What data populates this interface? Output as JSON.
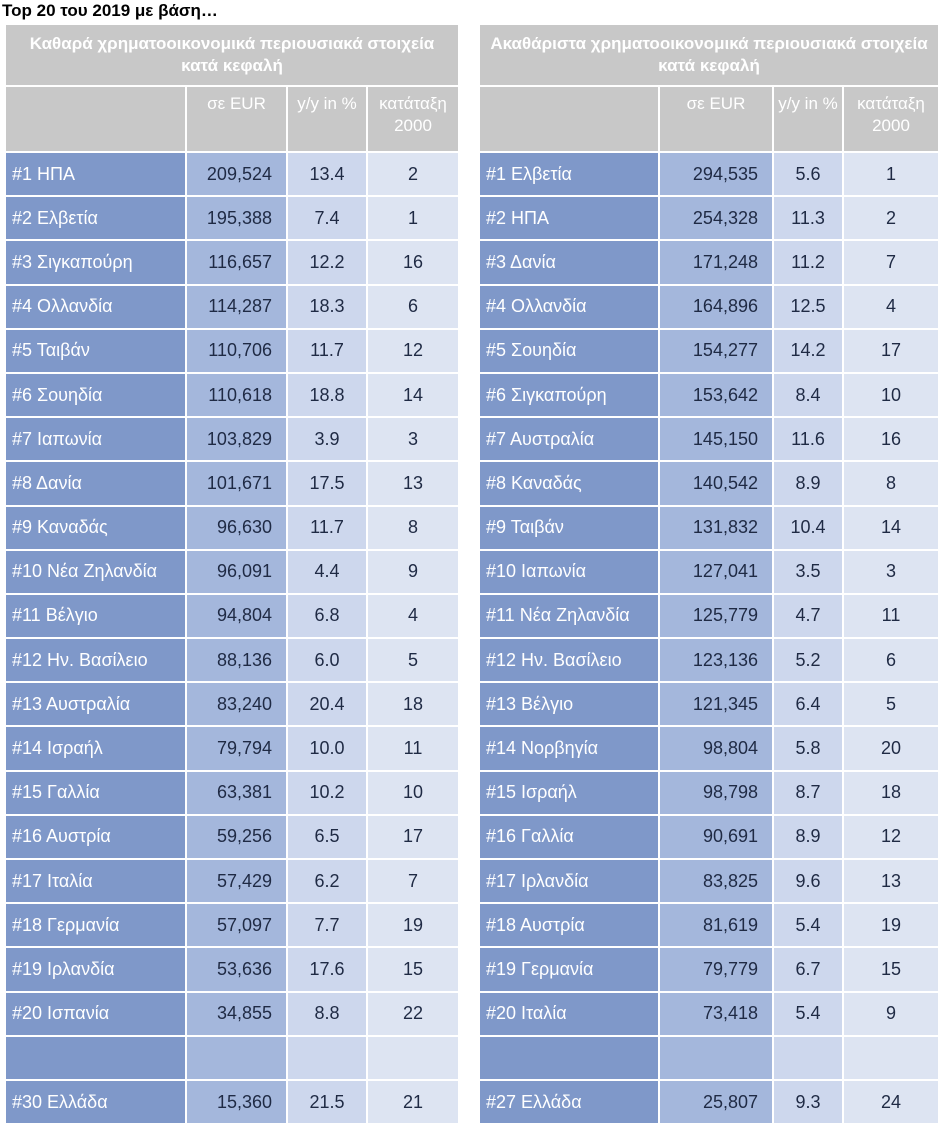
{
  "page_title": "Top 20 του 2019 με βάση…",
  "left": {
    "title": "Καθαρά χρηματοοικονομικά περιουσιακά στοιχεία κατά κεφαλή",
    "headers": [
      "",
      "σε EUR",
      "y/y in %",
      "κατάταξη 2000"
    ],
    "rows": [
      {
        "country": "#1 ΗΠΑ",
        "eur": "209,524",
        "yy": "13.4",
        "rank": "2"
      },
      {
        "country": "#2 Ελβετία",
        "eur": "195,388",
        "yy": "7.4",
        "rank": "1"
      },
      {
        "country": "#3 Σιγκαπούρη",
        "eur": "116,657",
        "yy": "12.2",
        "rank": "16"
      },
      {
        "country": "#4 Ολλανδία",
        "eur": "114,287",
        "yy": "18.3",
        "rank": "6"
      },
      {
        "country": "#5 Ταιβάν",
        "eur": "110,706",
        "yy": "11.7",
        "rank": "12"
      },
      {
        "country": "#6 Σουηδία",
        "eur": "110,618",
        "yy": "18.8",
        "rank": "14"
      },
      {
        "country": "#7 Ιαπωνία",
        "eur": "103,829",
        "yy": "3.9",
        "rank": "3"
      },
      {
        "country": "#8 Δανία",
        "eur": "101,671",
        "yy": "17.5",
        "rank": "13"
      },
      {
        "country": "#9 Καναδάς",
        "eur": "96,630",
        "yy": "11.7",
        "rank": "8"
      },
      {
        "country": "#10 Νέα Ζηλανδία",
        "eur": "96,091",
        "yy": "4.4",
        "rank": "9"
      },
      {
        "country": "#11 Βέλγιο",
        "eur": "94,804",
        "yy": "6.8",
        "rank": "4"
      },
      {
        "country": "#12 Ην. Βασίλειο",
        "eur": "88,136",
        "yy": "6.0",
        "rank": "5"
      },
      {
        "country": "#13 Αυστραλία",
        "eur": "83,240",
        "yy": "20.4",
        "rank": "18"
      },
      {
        "country": "#14 Ισραήλ",
        "eur": "79,794",
        "yy": "10.0",
        "rank": "11"
      },
      {
        "country": "#15 Γαλλία",
        "eur": "63,381",
        "yy": "10.2",
        "rank": "10"
      },
      {
        "country": "#16 Αυστρία",
        "eur": "59,256",
        "yy": "6.5",
        "rank": "17"
      },
      {
        "country": "#17 Ιταλία",
        "eur": "57,429",
        "yy": "6.2",
        "rank": "7"
      },
      {
        "country": "#18 Γερμανία",
        "eur": "57,097",
        "yy": "7.7",
        "rank": "19"
      },
      {
        "country": "#19 Ιρλανδία",
        "eur": "53,636",
        "yy": "17.6",
        "rank": "15"
      },
      {
        "country": "#20 Ισπανία",
        "eur": "34,855",
        "yy": "8.8",
        "rank": "22"
      }
    ],
    "greece": {
      "country": "#30 Ελλάδα",
      "eur": "15,360",
      "yy": "21.5",
      "rank": "21"
    }
  },
  "right": {
    "title": "Ακαθάριστα χρηματοοικονομικά περιουσιακά στοιχεία κατά κεφαλή",
    "headers": [
      "",
      "σε EUR",
      "y/y in %",
      "κατάταξη 2000"
    ],
    "rows": [
      {
        "country": "#1 Ελβετία",
        "eur": "294,535",
        "yy": "5.6",
        "rank": "1"
      },
      {
        "country": "#2 ΗΠΑ",
        "eur": "254,328",
        "yy": "11.3",
        "rank": "2"
      },
      {
        "country": "#3 Δανία",
        "eur": "171,248",
        "yy": "11.2",
        "rank": "7"
      },
      {
        "country": "#4 Ολλανδία",
        "eur": "164,896",
        "yy": "12.5",
        "rank": "4"
      },
      {
        "country": "#5 Σουηδία",
        "eur": "154,277",
        "yy": "14.2",
        "rank": "17"
      },
      {
        "country": "#6 Σιγκαπούρη",
        "eur": "153,642",
        "yy": "8.4",
        "rank": "10"
      },
      {
        "country": "#7 Αυστραλία",
        "eur": "145,150",
        "yy": "11.6",
        "rank": "16"
      },
      {
        "country": "#8 Καναδάς",
        "eur": "140,542",
        "yy": "8.9",
        "rank": "8"
      },
      {
        "country": "#9 Ταιβάν",
        "eur": "131,832",
        "yy": "10.4",
        "rank": "14"
      },
      {
        "country": "#10 Ιαπωνία",
        "eur": "127,041",
        "yy": "3.5",
        "rank": "3"
      },
      {
        "country": "#11 Νέα Ζηλανδία",
        "eur": "125,779",
        "yy": "4.7",
        "rank": "11"
      },
      {
        "country": "#12 Ην. Βασίλειο",
        "eur": "123,136",
        "yy": "5.2",
        "rank": "6"
      },
      {
        "country": "#13 Βέλγιο",
        "eur": "121,345",
        "yy": "6.4",
        "rank": "5"
      },
      {
        "country": "#14 Νορβηγία",
        "eur": "98,804",
        "yy": "5.8",
        "rank": "20"
      },
      {
        "country": "#15 Ισραήλ",
        "eur": "98,798",
        "yy": "8.7",
        "rank": "18"
      },
      {
        "country": "#16 Γαλλία",
        "eur": "90,691",
        "yy": "8.9",
        "rank": "12"
      },
      {
        "country": "#17 Ιρλανδία",
        "eur": "83,825",
        "yy": "9.6",
        "rank": "13"
      },
      {
        "country": "#18 Αυστρία",
        "eur": "81,619",
        "yy": "5.4",
        "rank": "19"
      },
      {
        "country": "#19 Γερμανία",
        "eur": "79,779",
        "yy": "6.7",
        "rank": "15"
      },
      {
        "country": "#20 Ιταλία",
        "eur": "73,418",
        "yy": "5.4",
        "rank": "9"
      }
    ],
    "greece": {
      "country": "#27 Ελλάδα",
      "eur": "25,807",
      "yy": "9.3",
      "rank": "24"
    }
  }
}
